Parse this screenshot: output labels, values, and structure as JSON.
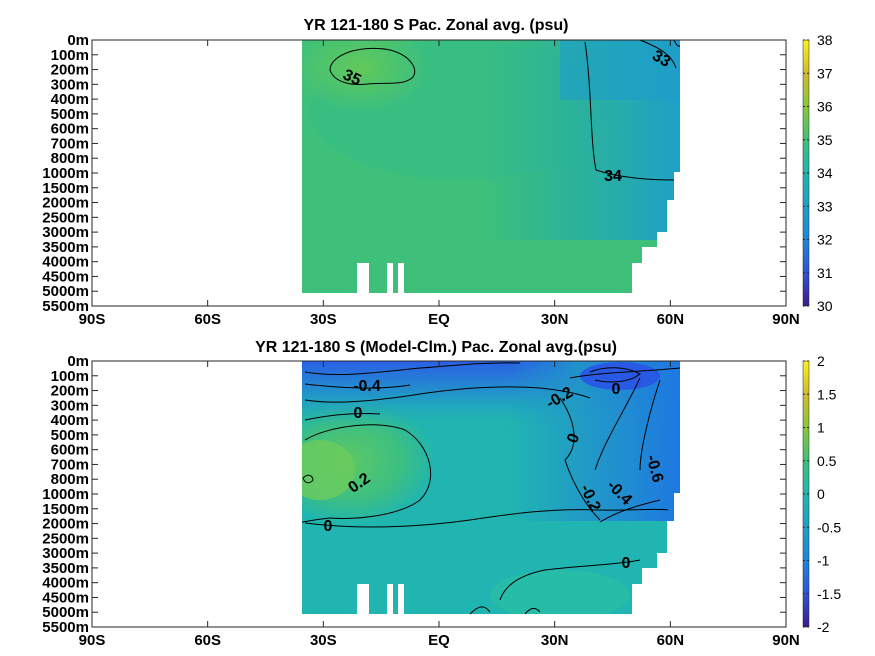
{
  "chart_data": [
    {
      "type": "heatmap",
      "title": "YR 121-180 S Pac. Zonal avg. (psu)",
      "xlabel": "",
      "ylabel": "",
      "x_ticks": [
        "90S",
        "60S",
        "30S",
        "EQ",
        "30N",
        "60N",
        "90N"
      ],
      "y_ticks": [
        "0m",
        "100m",
        "200m",
        "300m",
        "400m",
        "500m",
        "600m",
        "700m",
        "800m",
        "1000m",
        "1500m",
        "2000m",
        "2500m",
        "3000m",
        "3500m",
        "4000m",
        "4500m",
        "5000m",
        "5500m"
      ],
      "colorbar": {
        "ticks": [
          "30",
          "31",
          "32",
          "33",
          "34",
          "35",
          "36",
          "37",
          "38"
        ],
        "range": [
          30,
          38
        ]
      },
      "contour_labels": [
        "35",
        "33",
        "34"
      ],
      "colors": {
        "high": "#5cc863",
        "mid": "#3ec07a",
        "teal": "#2ab09a",
        "low": "#1ea0c8",
        "lowest": "#1e86d8"
      }
    },
    {
      "type": "heatmap",
      "title": "YR 121-180 S (Model-Clm.) Pac. Zonal avg.(psu)",
      "xlabel": "",
      "ylabel": "",
      "x_ticks": [
        "90S",
        "60S",
        "30S",
        "EQ",
        "30N",
        "60N",
        "90N"
      ],
      "y_ticks": [
        "0m",
        "100m",
        "200m",
        "300m",
        "400m",
        "500m",
        "600m",
        "700m",
        "800m",
        "1000m",
        "1500m",
        "2000m",
        "2500m",
        "3000m",
        "3500m",
        "4000m",
        "4500m",
        "5000m",
        "5500m"
      ],
      "colorbar": {
        "ticks": [
          "2",
          "1.5",
          "1",
          "0.5",
          "0",
          "-0.5",
          "-1",
          "-1.5",
          "-2"
        ],
        "range": [
          -2,
          2
        ]
      },
      "contour_labels": [
        "-0.4",
        "0",
        "-0.2",
        "0",
        "0",
        "0.2",
        "-0.6",
        "-0.4",
        "-0.2",
        "0",
        "0"
      ],
      "colors": {
        "pos": "#4cc26e",
        "zero": "#20b5b0",
        "neg": "#2198c8",
        "neg2": "#1e7ee0",
        "neg3": "#2a5fe6"
      }
    }
  ]
}
